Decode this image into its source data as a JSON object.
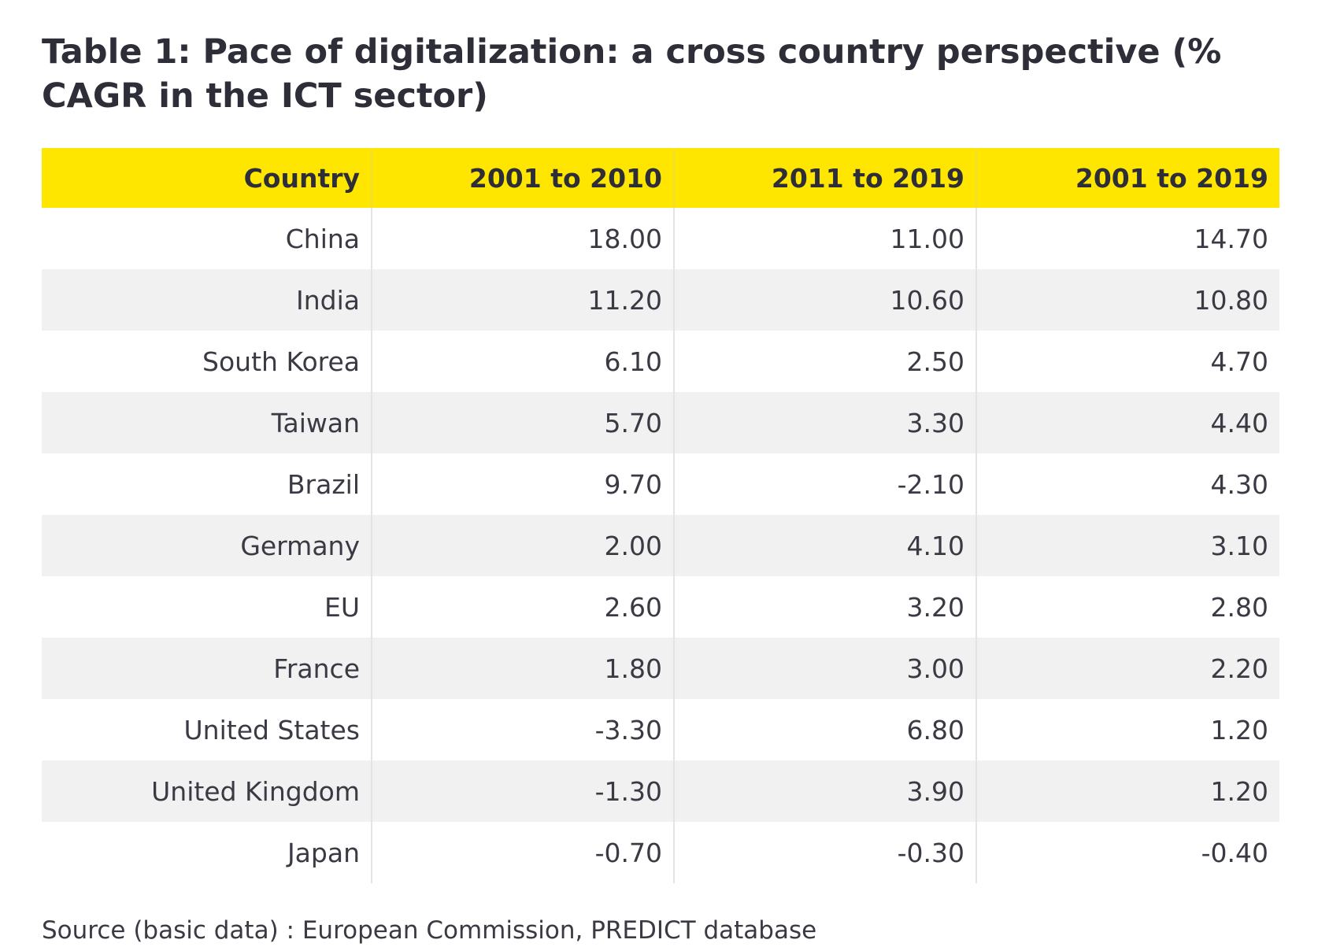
{
  "title": "Table 1: Pace of digitalization: a cross country perspective (% CAGR in the ICT sector)",
  "colors": {
    "header_background": "#ffe600",
    "alt_row_background": "#f1f1f1",
    "text": "#2e2e38"
  },
  "table": {
    "columns": [
      "Country",
      "2001 to 2010",
      "2011 to 2019",
      "2001 to 2019"
    ],
    "rows": [
      [
        "China",
        "18.00",
        "11.00",
        "14.70"
      ],
      [
        "India",
        "11.20",
        "10.60",
        "10.80"
      ],
      [
        "South Korea",
        "6.10",
        "2.50",
        "4.70"
      ],
      [
        "Taiwan",
        "5.70",
        "3.30",
        "4.40"
      ],
      [
        "Brazil",
        "9.70",
        "-2.10",
        "4.30"
      ],
      [
        "Germany",
        "2.00",
        "4.10",
        "3.10"
      ],
      [
        "EU",
        "2.60",
        "3.20",
        "2.80"
      ],
      [
        "France",
        "1.80",
        "3.00",
        "2.20"
      ],
      [
        "United States",
        "-3.30",
        "6.80",
        "1.20"
      ],
      [
        "United Kingdom",
        "-1.30",
        "3.90",
        "1.20"
      ],
      [
        "Japan",
        "-0.70",
        "-0.30",
        "-0.40"
      ]
    ]
  },
  "source": "Source (basic data) : European Commission, PREDICT database"
}
